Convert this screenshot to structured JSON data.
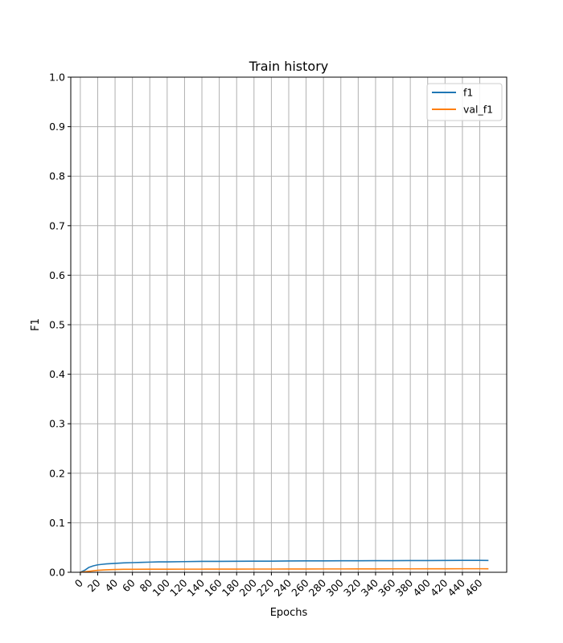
{
  "chart_data": {
    "type": "line",
    "title": "Train history",
    "xlabel": "Epochs",
    "ylabel": "F1",
    "xlim": [
      -11,
      491
    ],
    "ylim": [
      0,
      1.0
    ],
    "grid": true,
    "legend_position": "top-right",
    "x_ticks": [
      0,
      20,
      40,
      60,
      80,
      100,
      120,
      140,
      160,
      180,
      200,
      220,
      240,
      260,
      280,
      300,
      320,
      340,
      360,
      380,
      400,
      420,
      440,
      460
    ],
    "x_tick_labels": [
      "0",
      "20",
      "40",
      "60",
      "80",
      "100",
      "120",
      "140",
      "160",
      "180",
      "200",
      "220",
      "240",
      "260",
      "280",
      "300",
      "320",
      "340",
      "360",
      "380",
      "400",
      "420",
      "440",
      "460"
    ],
    "y_ticks": [
      0.0,
      0.1,
      0.2,
      0.3,
      0.4,
      0.5,
      0.6,
      0.7,
      0.8,
      0.9,
      1.0
    ],
    "y_tick_labels": [
      "0.0",
      "0.1",
      "0.2",
      "0.3",
      "0.4",
      "0.5",
      "0.6",
      "0.7",
      "0.8",
      "0.9",
      "1.0"
    ],
    "series": [
      {
        "name": "f1",
        "color": "#1f77b4",
        "x": [
          0,
          5,
          10,
          15,
          20,
          25,
          30,
          40,
          50,
          60,
          70,
          80,
          90,
          100,
          120,
          140,
          160,
          180,
          200,
          220,
          240,
          260,
          280,
          300,
          320,
          340,
          360,
          380,
          400,
          420,
          440,
          460,
          470
        ],
        "y": [
          0.0,
          0.004,
          0.01,
          0.013,
          0.015,
          0.016,
          0.017,
          0.018,
          0.019,
          0.0195,
          0.02,
          0.0205,
          0.021,
          0.021,
          0.0215,
          0.022,
          0.022,
          0.0222,
          0.0225,
          0.0225,
          0.0228,
          0.023,
          0.023,
          0.0232,
          0.0233,
          0.0235,
          0.0235,
          0.0236,
          0.0237,
          0.0238,
          0.024,
          0.024,
          0.0238
        ]
      },
      {
        "name": "val_f1",
        "color": "#ff7f0e",
        "x": [
          0,
          10,
          20,
          30,
          40,
          50,
          60,
          80,
          100,
          120,
          140,
          160,
          180,
          200,
          220,
          240,
          260,
          280,
          300,
          320,
          340,
          360,
          380,
          400,
          420,
          440,
          460,
          470
        ],
        "y": [
          0.0,
          0.002,
          0.004,
          0.005,
          0.0055,
          0.006,
          0.006,
          0.0062,
          0.0062,
          0.0063,
          0.0063,
          0.0064,
          0.0064,
          0.0065,
          0.0065,
          0.0066,
          0.0066,
          0.0067,
          0.0067,
          0.0068,
          0.0068,
          0.0069,
          0.0069,
          0.007,
          0.007,
          0.0071,
          0.0071,
          0.007
        ]
      }
    ]
  }
}
